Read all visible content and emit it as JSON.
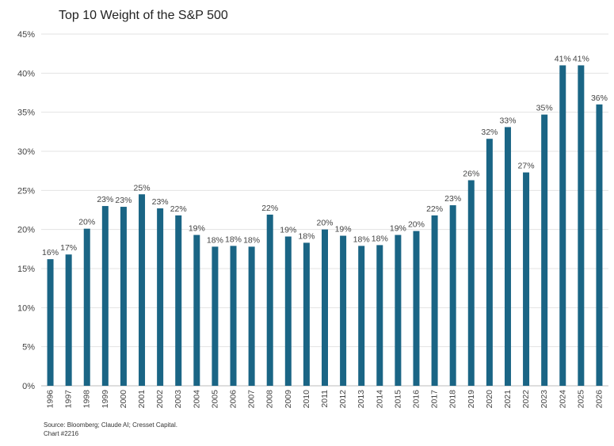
{
  "chart_data": {
    "type": "bar",
    "title": "Top 10 Weight of the S&P 500",
    "xlabel": "",
    "ylabel": "",
    "ylim": [
      0,
      45
    ],
    "yticks": [
      "0%",
      "5%",
      "10%",
      "15%",
      "20%",
      "25%",
      "30%",
      "35%",
      "40%",
      "45%"
    ],
    "categories": [
      "1996",
      "1997",
      "1998",
      "1999",
      "2000",
      "2001",
      "2002",
      "2003",
      "2004",
      "2005",
      "2006",
      "2007",
      "2008",
      "2009",
      "2010",
      "2011",
      "2012",
      "2013",
      "2014",
      "2015",
      "2016",
      "2017",
      "2018",
      "2019",
      "2020",
      "2021",
      "2022",
      "2023",
      "2024",
      "2025",
      "2026"
    ],
    "values": [
      16.2,
      16.8,
      20.1,
      23.0,
      22.9,
      24.5,
      22.7,
      21.8,
      19.3,
      17.8,
      17.9,
      17.8,
      21.9,
      19.1,
      18.3,
      20.0,
      19.2,
      17.9,
      18.0,
      19.3,
      19.8,
      21.8,
      23.1,
      26.3,
      31.6,
      33.1,
      27.3,
      34.7,
      41.0,
      41.0,
      36.0
    ],
    "data_labels": [
      "16%",
      "17%",
      "20%",
      "23%",
      "23%",
      "25%",
      "23%",
      "22%",
      "19%",
      "18%",
      "18%",
      "18%",
      "22%",
      "19%",
      "18%",
      "20%",
      "19%",
      "18%",
      "18%",
      "19%",
      "20%",
      "22%",
      "23%",
      "26%",
      "32%",
      "33%",
      "27%",
      "35%",
      "41%",
      "41%",
      "36%"
    ],
    "bar_color": "#1a6585",
    "grid": true,
    "legend": "none"
  },
  "footer": {
    "source": "Source: Bloomberg; Claude AI; Cresset Capital.",
    "chart_id": "Chart #2216"
  }
}
